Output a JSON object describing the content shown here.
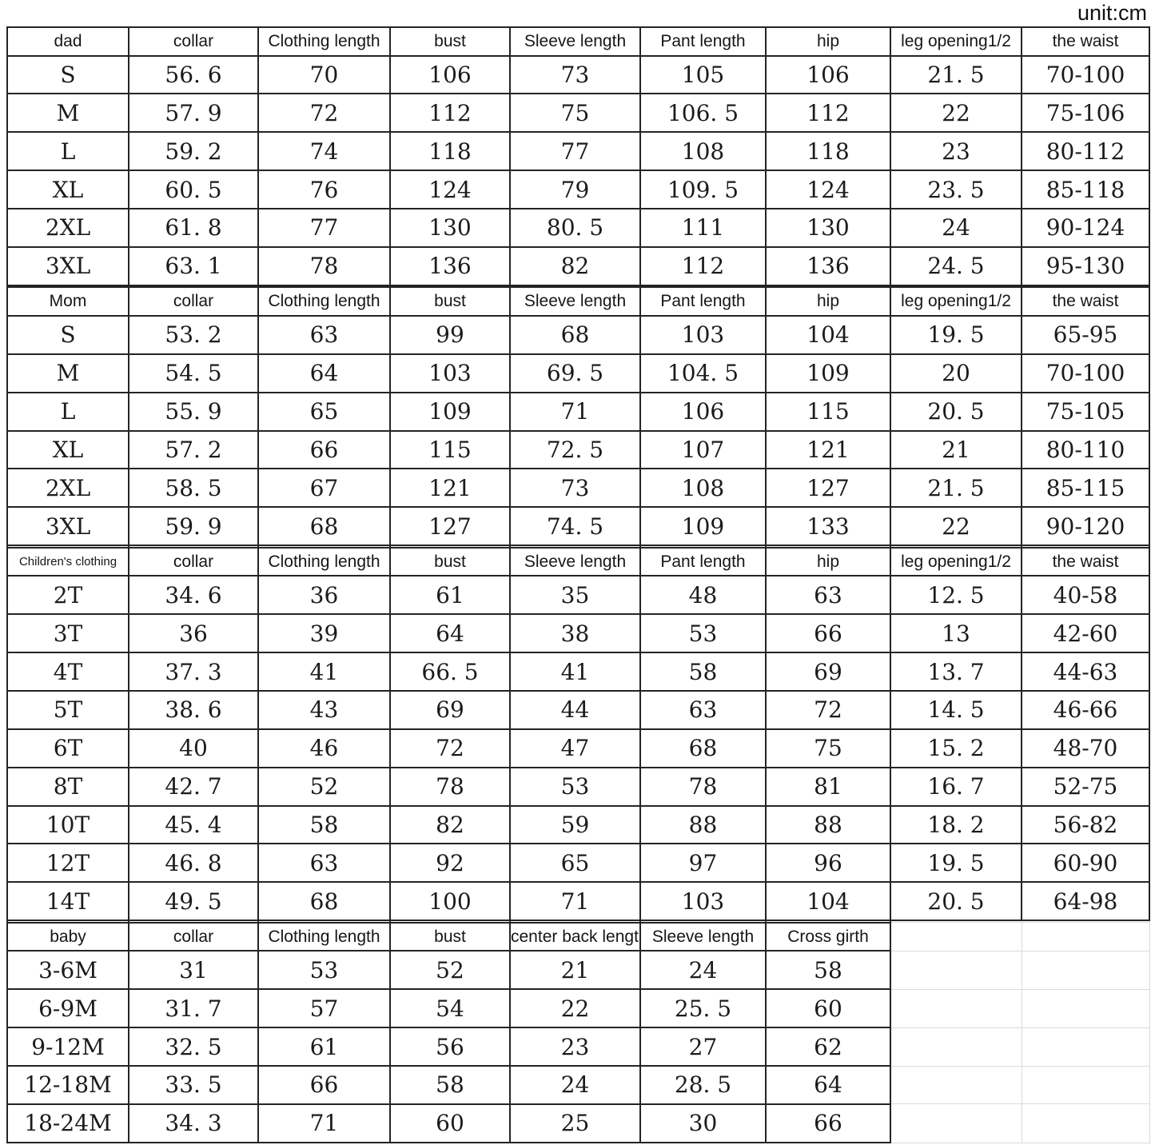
{
  "unit_label": "unit:cm",
  "chart_data": {
    "type": "table",
    "unit": "cm",
    "sections": [
      {
        "label": "dad",
        "columns": [
          "collar",
          "Clothing length",
          "bust",
          "Sleeve length",
          "Pant length",
          "hip",
          "leg opening1/2",
          "the waist"
        ],
        "rows": [
          {
            "size": "S",
            "values": [
              "56. 6",
              "70",
              "106",
              "73",
              "105",
              "106",
              "21. 5",
              "70-100"
            ]
          },
          {
            "size": "M",
            "values": [
              "57. 9",
              "72",
              "112",
              "75",
              "106. 5",
              "112",
              "22",
              "75-106"
            ]
          },
          {
            "size": "L",
            "values": [
              "59. 2",
              "74",
              "118",
              "77",
              "108",
              "118",
              "23",
              "80-112"
            ]
          },
          {
            "size": "XL",
            "values": [
              "60. 5",
              "76",
              "124",
              "79",
              "109. 5",
              "124",
              "23. 5",
              "85-118"
            ]
          },
          {
            "size": "2XL",
            "values": [
              "61. 8",
              "77",
              "130",
              "80. 5",
              "111",
              "130",
              "24",
              "90-124"
            ]
          },
          {
            "size": "3XL",
            "values": [
              "63. 1",
              "78",
              "136",
              "82",
              "112",
              "136",
              "24. 5",
              "95-130"
            ]
          }
        ]
      },
      {
        "label": "Mom",
        "columns": [
          "collar",
          "Clothing length",
          "bust",
          "Sleeve length",
          "Pant length",
          "hip",
          "leg opening1/2",
          "the waist"
        ],
        "rows": [
          {
            "size": "S",
            "values": [
              "53. 2",
              "63",
              "99",
              "68",
              "103",
              "104",
              "19. 5",
              "65-95"
            ]
          },
          {
            "size": "M",
            "values": [
              "54. 5",
              "64",
              "103",
              "69. 5",
              "104. 5",
              "109",
              "20",
              "70-100"
            ]
          },
          {
            "size": "L",
            "values": [
              "55. 9",
              "65",
              "109",
              "71",
              "106",
              "115",
              "20. 5",
              "75-105"
            ]
          },
          {
            "size": "XL",
            "values": [
              "57. 2",
              "66",
              "115",
              "72. 5",
              "107",
              "121",
              "21",
              "80-110"
            ]
          },
          {
            "size": "2XL",
            "values": [
              "58. 5",
              "67",
              "121",
              "73",
              "108",
              "127",
              "21. 5",
              "85-115"
            ]
          },
          {
            "size": "3XL",
            "values": [
              "59. 9",
              "68",
              "127",
              "74. 5",
              "109",
              "133",
              "22",
              "90-120"
            ]
          }
        ]
      },
      {
        "label": "Children's clothing",
        "columns": [
          "collar",
          "Clothing length",
          "bust",
          "Sleeve length",
          "Pant length",
          "hip",
          "leg opening1/2",
          "the waist"
        ],
        "rows": [
          {
            "size": "2T",
            "values": [
              "34. 6",
              "36",
              "61",
              "35",
              "48",
              "63",
              "12. 5",
              "40-58"
            ]
          },
          {
            "size": "3T",
            "values": [
              "36",
              "39",
              "64",
              "38",
              "53",
              "66",
              "13",
              "42-60"
            ]
          },
          {
            "size": "4T",
            "values": [
              "37. 3",
              "41",
              "66. 5",
              "41",
              "58",
              "69",
              "13. 7",
              "44-63"
            ]
          },
          {
            "size": "5T",
            "values": [
              "38. 6",
              "43",
              "69",
              "44",
              "63",
              "72",
              "14. 5",
              "46-66"
            ]
          },
          {
            "size": "6T",
            "values": [
              "40",
              "46",
              "72",
              "47",
              "68",
              "75",
              "15. 2",
              "48-70"
            ]
          },
          {
            "size": "8T",
            "values": [
              "42. 7",
              "52",
              "78",
              "53",
              "78",
              "81",
              "16. 7",
              "52-75"
            ]
          },
          {
            "size": "10T",
            "values": [
              "45. 4",
              "58",
              "82",
              "59",
              "88",
              "88",
              "18. 2",
              "56-82"
            ]
          },
          {
            "size": "12T",
            "values": [
              "46. 8",
              "63",
              "92",
              "65",
              "97",
              "96",
              "19. 5",
              "60-90"
            ]
          },
          {
            "size": "14T",
            "values": [
              "49. 5",
              "68",
              "100",
              "71",
              "103",
              "104",
              "20. 5",
              "64-98"
            ]
          }
        ]
      },
      {
        "label": "baby",
        "columns": [
          "collar",
          "Clothing length",
          "bust",
          "center back length",
          "Sleeve length",
          "Cross girth"
        ],
        "rows": [
          {
            "size": "3-6M",
            "values": [
              "31",
              "53",
              "52",
              "21",
              "24",
              "58"
            ]
          },
          {
            "size": "6-9M",
            "values": [
              "31. 7",
              "57",
              "54",
              "22",
              "25. 5",
              "60"
            ]
          },
          {
            "size": "9-12M",
            "values": [
              "32. 5",
              "61",
              "56",
              "23",
              "27",
              "62"
            ]
          },
          {
            "size": "12-18M",
            "values": [
              "33. 5",
              "66",
              "58",
              "24",
              "28. 5",
              "64"
            ]
          },
          {
            "size": "18-24M",
            "values": [
              "34. 3",
              "71",
              "60",
              "25",
              "30",
              "66"
            ]
          }
        ]
      }
    ]
  }
}
